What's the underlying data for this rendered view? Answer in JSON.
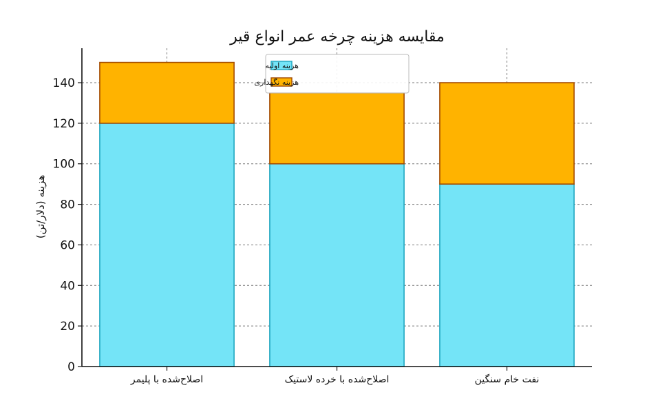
{
  "chart_data": {
    "type": "bar",
    "stacked": true,
    "title": "مقایسه هزینه چرخه عمر انواع قیر",
    "xlabel": "",
    "ylabel": "هزینه (دلار/تن)",
    "categories": [
      "اصلاح‌شده با پلیمر",
      "اصلاح‌شده با خرده لاستیک",
      "نفت خام سنگین"
    ],
    "series": [
      {
        "name": "هزینه اولیه",
        "values": [
          120,
          100,
          90
        ],
        "color": "#74e4f7",
        "edge": "#1fa6bf"
      },
      {
        "name": "هزینه نگهداری",
        "values": [
          30,
          35,
          50
        ],
        "color": "#ffb300",
        "edge": "#a34b00"
      }
    ],
    "ylim": [
      0,
      157
    ],
    "yticks": [
      0,
      20,
      40,
      60,
      80,
      100,
      120,
      140
    ],
    "grid": true,
    "legend_position": "top-center"
  }
}
